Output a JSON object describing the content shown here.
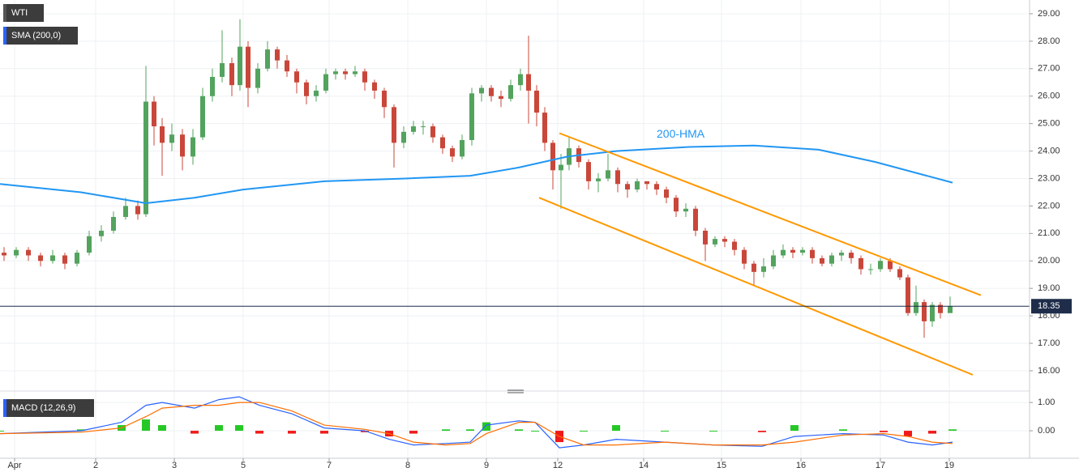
{
  "chart_data": [
    {
      "type": "candlestick",
      "title": "WTI",
      "indicator_label": "SMA (200,0)",
      "up_color": "#53a35e",
      "down_color": "#c9473a",
      "xlim": [
        0,
        1270
      ],
      "ylim": [
        15.35,
        29.5
      ],
      "xticks": [
        {
          "value": 18,
          "label": "Apr"
        },
        {
          "value": 118,
          "label": "2"
        },
        {
          "value": 215,
          "label": "3"
        },
        {
          "value": 300,
          "label": "5"
        },
        {
          "value": 406,
          "label": "7"
        },
        {
          "value": 503,
          "label": "8"
        },
        {
          "value": 600,
          "label": "9"
        },
        {
          "value": 688,
          "label": "12"
        },
        {
          "value": 794,
          "label": "14"
        },
        {
          "value": 890,
          "label": "15"
        },
        {
          "value": 988,
          "label": "16"
        },
        {
          "value": 1086,
          "label": "17"
        },
        {
          "value": 1171,
          "label": "19"
        }
      ],
      "yticks": [
        {
          "value": 16,
          "label": "16.00"
        },
        {
          "value": 17,
          "label": "17.00"
        },
        {
          "value": 18,
          "label": "18.00"
        },
        {
          "value": 19,
          "label": "19.00"
        },
        {
          "value": 20,
          "label": "20.00"
        },
        {
          "value": 21,
          "label": "21.00"
        },
        {
          "value": 22,
          "label": "22.00"
        },
        {
          "value": 23,
          "label": "23.00"
        },
        {
          "value": 24,
          "label": "24.00"
        },
        {
          "value": 25,
          "label": "25.00"
        },
        {
          "value": 26,
          "label": "26.00"
        },
        {
          "value": 27,
          "label": "27.00"
        },
        {
          "value": 28,
          "label": "28.00"
        },
        {
          "value": 29,
          "label": "29.00"
        }
      ],
      "grid": true,
      "x": [
        5,
        20,
        35,
        50,
        65,
        80,
        95,
        110,
        125,
        140,
        155,
        170,
        180,
        190,
        200,
        212,
        225,
        238,
        250,
        262,
        274,
        286,
        296,
        306,
        318,
        330,
        342,
        354,
        366,
        378,
        390,
        402,
        414,
        426,
        438,
        450,
        462,
        474,
        486,
        498,
        510,
        522,
        534,
        546,
        558,
        570,
        582,
        594,
        606,
        618,
        630,
        642,
        652,
        662,
        672,
        682,
        692,
        702,
        714,
        726,
        738,
        750,
        762,
        774,
        786,
        798,
        810,
        822,
        834,
        846,
        858,
        870,
        882,
        894,
        906,
        918,
        930,
        942,
        954,
        966,
        978,
        990,
        1002,
        1014,
        1026,
        1038,
        1050,
        1062,
        1074,
        1086,
        1098,
        1110,
        1120,
        1130,
        1140,
        1150,
        1160,
        1172
      ],
      "open": [
        20.3,
        20.2,
        20.4,
        20.2,
        20.0,
        20.2,
        19.9,
        20.3,
        20.9,
        21.1,
        21.6,
        22.0,
        21.7,
        25.8,
        24.9,
        24.3,
        24.6,
        23.8,
        24.5,
        26.0,
        26.7,
        27.2,
        26.4,
        27.8,
        26.3,
        27.0,
        27.7,
        27.3,
        26.9,
        26.5,
        26.0,
        26.2,
        26.8,
        26.9,
        26.8,
        26.9,
        26.5,
        26.2,
        25.6,
        24.3,
        24.7,
        24.9,
        24.9,
        24.5,
        24.1,
        23.8,
        24.4,
        26.1,
        26.3,
        26.0,
        25.9,
        26.4,
        26.8,
        26.2,
        25.4,
        24.3,
        23.3,
        23.5,
        24.1,
        23.6,
        22.9,
        23.0,
        23.3,
        22.8,
        22.6,
        22.9,
        22.8,
        22.6,
        22.3,
        21.8,
        21.9,
        21.1,
        20.6,
        20.8,
        20.7,
        20.4,
        19.9,
        19.6,
        19.8,
        20.2,
        20.4,
        20.3,
        20.4,
        20.1,
        19.9,
        20.2,
        20.3,
        20.1,
        19.7,
        19.7,
        20.0,
        19.7,
        19.4,
        18.1,
        18.5,
        17.8,
        18.4,
        18.1
      ],
      "high": [
        20.5,
        20.5,
        20.5,
        20.3,
        20.4,
        20.3,
        20.4,
        21.1,
        21.3,
        21.8,
        22.3,
        22.2,
        27.1,
        26.0,
        25.2,
        25.0,
        24.8,
        24.8,
        26.3,
        27.0,
        28.4,
        27.4,
        28.8,
        28.0,
        27.2,
        28.0,
        27.8,
        27.5,
        27.0,
        26.6,
        26.4,
        27.0,
        27.0,
        27.0,
        27.1,
        27.0,
        26.6,
        26.3,
        25.7,
        24.9,
        25.1,
        25.1,
        25.0,
        24.6,
        24.2,
        24.6,
        26.3,
        26.4,
        26.4,
        26.2,
        26.6,
        27.0,
        28.2,
        26.4,
        25.6,
        24.4,
        23.9,
        24.5,
        24.2,
        23.7,
        23.2,
        23.9,
        23.4,
        22.9,
        23.0,
        22.9,
        22.9,
        22.7,
        22.4,
        22.1,
        22.0,
        21.2,
        20.9,
        20.9,
        20.8,
        20.5,
        20.0,
        20.1,
        20.4,
        20.6,
        20.5,
        20.5,
        20.5,
        20.2,
        20.3,
        20.4,
        20.4,
        20.2,
        19.9,
        20.1,
        20.1,
        19.8,
        19.5,
        19.1,
        18.6,
        18.5,
        18.5,
        18.7
      ],
      "low": [
        20.0,
        20.1,
        20.0,
        19.8,
        19.9,
        19.7,
        19.8,
        20.2,
        20.7,
        21.0,
        21.5,
        21.5,
        21.6,
        24.2,
        23.1,
        24.0,
        23.3,
        23.5,
        24.4,
        25.8,
        26.5,
        26.0,
        26.2,
        25.6,
        26.1,
        26.9,
        27.0,
        26.7,
        26.1,
        25.7,
        25.8,
        26.1,
        26.6,
        26.6,
        26.7,
        26.2,
        25.9,
        25.2,
        23.4,
        24.1,
        24.6,
        24.6,
        24.3,
        23.9,
        23.6,
        23.7,
        24.2,
        25.8,
        25.8,
        25.6,
        25.8,
        26.2,
        25.0,
        24.9,
        24.0,
        22.6,
        21.9,
        23.3,
        23.4,
        22.6,
        22.5,
        22.9,
        22.5,
        22.3,
        22.5,
        22.6,
        22.4,
        22.1,
        21.6,
        21.6,
        20.9,
        20.0,
        20.5,
        20.5,
        20.2,
        19.7,
        19.1,
        19.4,
        19.7,
        20.1,
        20.1,
        20.2,
        19.9,
        19.8,
        19.8,
        20.0,
        19.9,
        19.5,
        19.5,
        19.6,
        19.6,
        19.3,
        18.0,
        18.0,
        17.2,
        17.6,
        17.9,
        18.2
      ],
      "close": [
        20.2,
        20.4,
        20.2,
        20.0,
        20.2,
        19.9,
        20.3,
        20.9,
        21.1,
        21.6,
        22.0,
        21.7,
        25.8,
        24.9,
        24.3,
        24.6,
        23.8,
        24.5,
        26.0,
        26.7,
        27.2,
        26.4,
        27.8,
        26.3,
        27.0,
        27.7,
        27.3,
        26.9,
        26.5,
        26.0,
        26.2,
        26.8,
        26.9,
        26.8,
        26.9,
        26.5,
        26.2,
        25.6,
        24.3,
        24.7,
        24.9,
        24.9,
        24.5,
        24.1,
        23.8,
        24.4,
        26.1,
        26.3,
        26.0,
        25.9,
        26.4,
        26.8,
        26.2,
        25.4,
        24.3,
        23.3,
        23.5,
        24.1,
        23.6,
        22.9,
        23.0,
        23.3,
        22.8,
        22.6,
        22.9,
        22.8,
        22.6,
        22.3,
        21.8,
        21.9,
        21.1,
        20.6,
        20.8,
        20.7,
        20.4,
        19.9,
        19.6,
        19.8,
        20.2,
        20.4,
        20.3,
        20.4,
        20.1,
        19.9,
        20.2,
        20.3,
        20.1,
        19.7,
        19.7,
        20.0,
        19.7,
        19.4,
        18.1,
        18.5,
        17.8,
        18.4,
        18.1,
        18.35
      ],
      "overlays": [
        {
          "name": "200-HMA",
          "color": "#2196f3",
          "x": [
            0,
            100,
            180,
            240,
            300,
            400,
            500,
            580,
            640,
            700,
            760,
            850,
            930,
            1010,
            1080,
            1175
          ],
          "values": [
            22.8,
            22.5,
            22.1,
            22.3,
            22.6,
            22.9,
            23.0,
            23.1,
            23.4,
            23.8,
            24.0,
            24.15,
            24.2,
            24.05,
            23.6,
            22.85
          ]
        }
      ],
      "trendlines": [
        {
          "color": "#ff9800",
          "x": [
            690,
            1210
          ],
          "values": [
            24.65,
            18.75
          ]
        },
        {
          "color": "#ff9800",
          "x": [
            665,
            1200
          ],
          "values": [
            22.3,
            15.85
          ]
        }
      ]
    },
    {
      "type": "macd",
      "title": "MACD (12,26,9)",
      "xlim": [
        0,
        1270
      ],
      "ylim": [
        -0.97,
        1.26
      ],
      "yticks": [
        {
          "value": 1,
          "label": "1.00"
        },
        {
          "value": 0,
          "label": "0.00"
        }
      ],
      "x": [
        0,
        100,
        150,
        180,
        200,
        240,
        270,
        295,
        320,
        360,
        400,
        450,
        480,
        510,
        550,
        580,
        600,
        640,
        660,
        690,
        720,
        760,
        820,
        880,
        940,
        980,
        1040,
        1090,
        1120,
        1150,
        1175
      ],
      "series": [
        {
          "color": "#2962ff",
          "values": [
            -0.1,
            0.0,
            0.3,
            0.9,
            1.0,
            0.8,
            1.1,
            1.2,
            0.9,
            0.6,
            0.1,
            0.0,
            -0.3,
            -0.5,
            -0.45,
            -0.4,
            0.2,
            0.35,
            0.3,
            -0.6,
            -0.5,
            -0.3,
            -0.4,
            -0.5,
            -0.55,
            -0.2,
            -0.1,
            -0.15,
            -0.4,
            -0.5,
            -0.4
          ]
        },
        {
          "color": "#ff6d00",
          "values": [
            -0.1,
            -0.05,
            0.1,
            0.5,
            0.8,
            0.9,
            0.9,
            1.0,
            1.0,
            0.7,
            0.2,
            0.05,
            -0.1,
            -0.4,
            -0.5,
            -0.45,
            -0.1,
            0.3,
            0.3,
            -0.2,
            -0.5,
            -0.5,
            -0.4,
            -0.5,
            -0.5,
            -0.4,
            -0.15,
            -0.1,
            -0.2,
            -0.4,
            -0.45
          ]
        }
      ],
      "histogram": {
        "up_color": "#26c826",
        "down_color": "#ef1a1a",
        "values": [
          0,
          0.05,
          0.2,
          0.4,
          0.2,
          -0.1,
          0.2,
          0.2,
          -0.1,
          -0.1,
          -0.1,
          -0.05,
          -0.2,
          -0.1,
          0.05,
          0.05,
          0.3,
          0.05,
          0,
          -0.4,
          0,
          0.2,
          0,
          0,
          -0.05,
          0.2,
          0.05,
          -0.05,
          -0.2,
          -0.1,
          0.05
        ]
      }
    }
  ]
}
